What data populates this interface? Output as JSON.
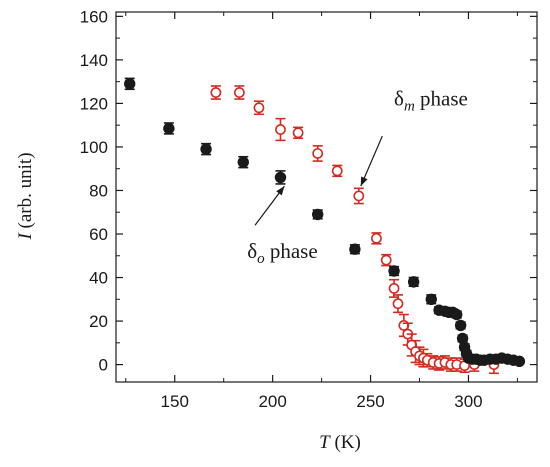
{
  "chart_data": {
    "type": "scatter",
    "xlabel": {
      "var": "T",
      "unit": " (K)"
    },
    "ylabel": {
      "var": "I",
      "unit": " (arb. unit)"
    },
    "xlim": [
      120,
      335
    ],
    "ylim": [
      -8,
      162
    ],
    "xticks": [
      150,
      200,
      250,
      300
    ],
    "yticks": [
      0,
      20,
      40,
      60,
      80,
      100,
      120,
      140,
      160
    ],
    "x_tick_labels": [
      "150",
      "200",
      "250",
      "300"
    ],
    "y_tick_labels": [
      "0",
      "20",
      "40",
      "60",
      "80",
      "100",
      "120",
      "140",
      "160"
    ],
    "grid": false,
    "series": [
      {
        "marker": "filled-circle",
        "color": "#1a1a1a",
        "points": [
          {
            "x": 127,
            "y": 129,
            "err": 2.5
          },
          {
            "x": 147,
            "y": 108.5,
            "err": 2.5
          },
          {
            "x": 166,
            "y": 99,
            "err": 2.5
          },
          {
            "x": 185,
            "y": 93,
            "err": 2.5
          },
          {
            "x": 204,
            "y": 86,
            "err": 3
          },
          {
            "x": 223,
            "y": 69,
            "err": 2
          },
          {
            "x": 242,
            "y": 53,
            "err": 2
          },
          {
            "x": 262,
            "y": 43,
            "err": 2
          },
          {
            "x": 272,
            "y": 38,
            "err": 2
          },
          {
            "x": 281,
            "y": 30,
            "err": 2
          },
          {
            "x": 285,
            "y": 25,
            "err": 1.5
          },
          {
            "x": 288,
            "y": 24.5,
            "err": 1.5
          },
          {
            "x": 290,
            "y": 24,
            "err": 1.5
          },
          {
            "x": 292,
            "y": 24,
            "err": 1.5
          },
          {
            "x": 294,
            "y": 23,
            "err": 1.5
          },
          {
            "x": 296,
            "y": 18,
            "err": 1.5
          },
          {
            "x": 297,
            "y": 12,
            "err": 1.5
          },
          {
            "x": 298,
            "y": 8,
            "err": 1.5
          },
          {
            "x": 299,
            "y": 5,
            "err": 1.5
          },
          {
            "x": 300,
            "y": 3,
            "err": 1.5
          },
          {
            "x": 302,
            "y": 2.5,
            "err": 1
          },
          {
            "x": 304,
            "y": 2.5,
            "err": 1
          },
          {
            "x": 306,
            "y": 2,
            "err": 1
          },
          {
            "x": 308,
            "y": 2,
            "err": 1
          },
          {
            "x": 311,
            "y": 2.5,
            "err": 1
          },
          {
            "x": 314,
            "y": 2.5,
            "err": 1
          },
          {
            "x": 317,
            "y": 3,
            "err": 1
          },
          {
            "x": 320,
            "y": 2.5,
            "err": 1
          },
          {
            "x": 323,
            "y": 2,
            "err": 1
          },
          {
            "x": 326,
            "y": 1.5,
            "err": 1
          }
        ]
      },
      {
        "marker": "open-circle",
        "color": "#d42a22",
        "points": [
          {
            "x": 171,
            "y": 125,
            "err": 3
          },
          {
            "x": 183,
            "y": 125,
            "err": 3
          },
          {
            "x": 193,
            "y": 118,
            "err": 3
          },
          {
            "x": 204,
            "y": 108,
            "err": 5
          },
          {
            "x": 213,
            "y": 106.5,
            "err": 2.5
          },
          {
            "x": 223,
            "y": 97,
            "err": 3.5
          },
          {
            "x": 233,
            "y": 89,
            "err": 2.5
          },
          {
            "x": 244,
            "y": 77.5,
            "err": 3.5
          },
          {
            "x": 253,
            "y": 58,
            "err": 2.5
          },
          {
            "x": 258,
            "y": 48,
            "err": 2.5
          },
          {
            "x": 262,
            "y": 35,
            "err": 4
          },
          {
            "x": 264,
            "y": 28,
            "err": 4
          },
          {
            "x": 267,
            "y": 18,
            "err": 5
          },
          {
            "x": 269,
            "y": 14,
            "err": 5
          },
          {
            "x": 271,
            "y": 9,
            "err": 5
          },
          {
            "x": 273,
            "y": 6,
            "err": 5
          },
          {
            "x": 275,
            "y": 4,
            "err": 4
          },
          {
            "x": 277,
            "y": 3,
            "err": 4
          },
          {
            "x": 279,
            "y": 2,
            "err": 3
          },
          {
            "x": 282,
            "y": 1,
            "err": 3
          },
          {
            "x": 285,
            "y": 0.5,
            "err": 3
          },
          {
            "x": 288,
            "y": 1,
            "err": 3
          },
          {
            "x": 291,
            "y": 0,
            "err": 3
          },
          {
            "x": 294,
            "y": 0,
            "err": 3
          },
          {
            "x": 298,
            "y": -0.5,
            "err": 3
          },
          {
            "x": 303,
            "y": 0,
            "err": 3
          },
          {
            "x": 313,
            "y": 0,
            "err": 4
          }
        ]
      }
    ],
    "annotations": [
      {
        "label_main": "δ",
        "label_sub": "m",
        "label_rest": " phase",
        "text_at": [
          262,
          119
        ],
        "arrow_from": [
          256,
          105
        ],
        "arrow_to": [
          245,
          82
        ]
      },
      {
        "label_main": "δ",
        "label_sub": "o",
        "label_rest": " phase",
        "text_at": [
          187,
          49
        ],
        "arrow_from": [
          191,
          64
        ],
        "arrow_to": [
          206,
          82
        ]
      }
    ]
  }
}
